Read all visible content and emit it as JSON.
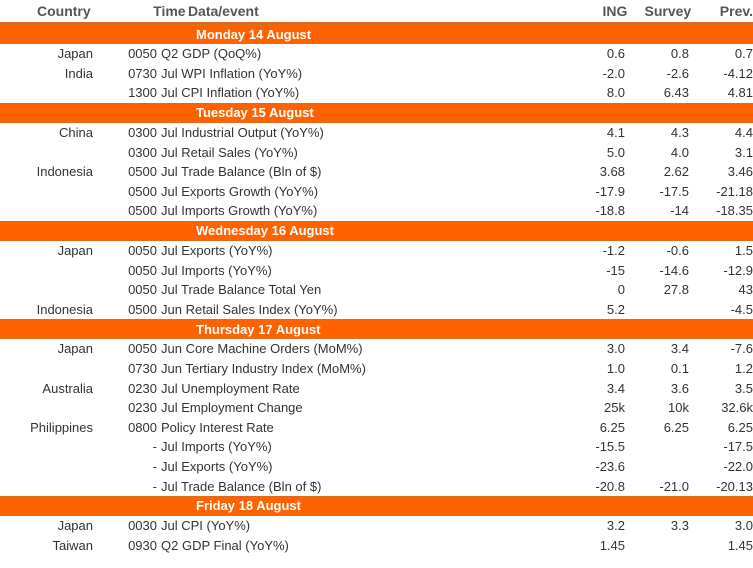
{
  "headers": {
    "country": "Country",
    "time": "Time",
    "event": "Data/event",
    "ing": "ING",
    "survey": "Survey",
    "prev": "Prev."
  },
  "days": [
    {
      "label": "Monday 14 August",
      "rows": [
        {
          "country": "Japan",
          "time": "0050",
          "event": "Q2 GDP (QoQ%)",
          "ing": "0.6",
          "survey": "0.8",
          "prev": "0.7"
        },
        {
          "country": "India",
          "time": "0730",
          "event": "Jul WPI Inflation (YoY%)",
          "ing": "-2.0",
          "survey": "-2.6",
          "prev": "-4.12"
        },
        {
          "country": "",
          "time": "1300",
          "event": "Jul CPI Inflation (YoY%)",
          "ing": "8.0",
          "survey": "6.43",
          "prev": "4.81"
        }
      ]
    },
    {
      "label": "Tuesday 15 August",
      "rows": [
        {
          "country": "China",
          "time": "0300",
          "event": "Jul Industrial Output (YoY%)",
          "ing": "4.1",
          "survey": "4.3",
          "prev": "4.4"
        },
        {
          "country": "",
          "time": "0300",
          "event": "Jul Retail Sales (YoY%)",
          "ing": "5.0",
          "survey": "4.0",
          "prev": "3.1"
        },
        {
          "country": "Indonesia",
          "time": "0500",
          "event": "Jul Trade Balance (Bln of $)",
          "ing": "3.68",
          "survey": "2.62",
          "prev": "3.46"
        },
        {
          "country": "",
          "time": "0500",
          "event": "Jul Exports Growth (YoY%)",
          "ing": "-17.9",
          "survey": "-17.5",
          "prev": "-21.18"
        },
        {
          "country": "",
          "time": "0500",
          "event": "Jul Imports Growth (YoY%)",
          "ing": "-18.8",
          "survey": "-14",
          "prev": "-18.35"
        }
      ]
    },
    {
      "label": "Wednesday 16 August",
      "rows": [
        {
          "country": "Japan",
          "time": "0050",
          "event": "Jul Exports (YoY%)",
          "ing": "-1.2",
          "survey": "-0.6",
          "prev": "1.5"
        },
        {
          "country": "",
          "time": "0050",
          "event": "Jul Imports (YoY%)",
          "ing": "-15",
          "survey": "-14.6",
          "prev": "-12.9"
        },
        {
          "country": "",
          "time": "0050",
          "event": "Jul Trade Balance Total Yen",
          "ing": "0",
          "survey": "27.8",
          "prev": "43"
        },
        {
          "country": "Indonesia",
          "time": "0500",
          "event": "Jun Retail Sales Index (YoY%)",
          "ing": "5.2",
          "survey": "",
          "prev": "-4.5"
        }
      ]
    },
    {
      "label": "Thursday 17 August",
      "rows": [
        {
          "country": "Japan",
          "time": "0050",
          "event": "Jun Core Machine Orders (MoM%)",
          "ing": "3.0",
          "survey": "3.4",
          "prev": "-7.6"
        },
        {
          "country": "",
          "time": "0730",
          "event": "Jun Tertiary Industry Index (MoM%)",
          "ing": "1.0",
          "survey": "0.1",
          "prev": "1.2"
        },
        {
          "country": "Australia",
          "time": "0230",
          "event": "Jul Unemployment Rate",
          "ing": "3.4",
          "survey": "3.6",
          "prev": "3.5"
        },
        {
          "country": "",
          "time": "0230",
          "event": "Jul Employment Change",
          "ing": "25k",
          "survey": "10k",
          "prev": "32.6k"
        },
        {
          "country": "Philippines",
          "time": "0800",
          "event": "Policy Interest Rate",
          "ing": "6.25",
          "survey": "6.25",
          "prev": "6.25"
        },
        {
          "country": "",
          "time": "-",
          "event": "Jul Imports (YoY%)",
          "ing": "-15.5",
          "survey": "",
          "prev": "-17.5"
        },
        {
          "country": "",
          "time": "-",
          "event": "Jul Exports (YoY%)",
          "ing": "-23.6",
          "survey": "",
          "prev": "-22.0"
        },
        {
          "country": "",
          "time": "-",
          "event": "Jul Trade Balance (Bln of $)",
          "ing": "-20.8",
          "survey": "-21.0",
          "prev": "-20.13"
        }
      ]
    },
    {
      "label": "Friday 18 August",
      "rows": [
        {
          "country": "Japan",
          "time": "0030",
          "event": "Jul CPI (YoY%)",
          "ing": "3.2",
          "survey": "3.3",
          "prev": "3.0"
        },
        {
          "country": "Taiwan",
          "time": "0930",
          "event": "Q2 GDP Final (YoY%)",
          "ing": "1.45",
          "survey": "",
          "prev": "1.45"
        }
      ]
    }
  ]
}
